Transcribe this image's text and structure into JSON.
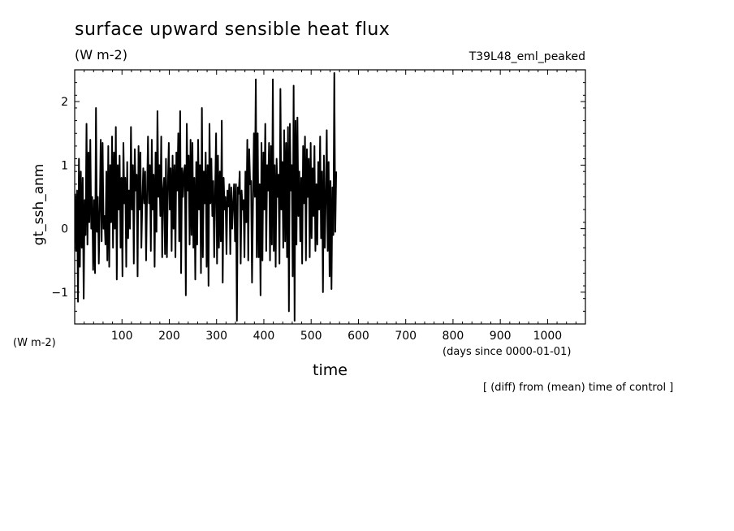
{
  "header": {
    "title": "surface upward sensible heat flux",
    "units": "(W m-2)",
    "run_name": "T39L48_eml_peaked",
    "units_left": "(W m-2)",
    "x_unit_label": "(days since 0000-01-01)",
    "note": "[ (diff) from (mean) time of control ]"
  },
  "chart_data": {
    "type": "line",
    "title": "surface upward sensible heat flux",
    "subtitle": "(W m-2)",
    "xlabel": "time",
    "ylabel": "gt_ssh_anm",
    "xlim": [
      0,
      1080
    ],
    "ylim": [
      -1.5,
      2.5
    ],
    "x_ticks": [
      100,
      200,
      300,
      400,
      500,
      600,
      700,
      800,
      900,
      1000
    ],
    "y_ticks": [
      -1,
      0,
      1,
      2
    ],
    "x_tick_labels": [
      "100",
      "200",
      "300",
      "400",
      "500",
      "600",
      "700",
      "800",
      "900",
      "1000"
    ],
    "y_tick_labels": [
      "−1",
      "0",
      "1",
      "2"
    ],
    "grid": false,
    "series": [
      {
        "color": "#000000",
        "x_start": 1,
        "x_step": 2,
        "values": [
          0.55,
          -0.35,
          0.6,
          -1.15,
          1.1,
          -0.6,
          0.9,
          -0.3,
          0.8,
          -1.1,
          0.45,
          -0.1,
          1.65,
          -0.25,
          1.2,
          0.1,
          1.4,
          0.0,
          0.5,
          -0.65,
          0.45,
          -0.7,
          1.9,
          -0.05,
          0.5,
          -0.55,
          0.3,
          1.4,
          -0.2,
          1.35,
          0.0,
          0.2,
          -0.25,
          0.9,
          -0.5,
          1.3,
          -0.6,
          1.0,
          0.1,
          1.45,
          -0.3,
          1.2,
          0.0,
          1.6,
          -0.8,
          1.0,
          0.3,
          1.15,
          -0.3,
          0.8,
          -0.75,
          1.35,
          0.4,
          0.8,
          -0.6,
          1.05,
          -0.15,
          0.6,
          0.0,
          1.6,
          0.3,
          1.0,
          -0.55,
          1.25,
          0.6,
          0.85,
          -0.75,
          1.3,
          0.3,
          1.2,
          -0.3,
          0.4,
          0.95,
          0.4,
          0.9,
          -0.5,
          0.55,
          1.45,
          0.4,
          1.0,
          -0.35,
          1.4,
          0.3,
          0.85,
          -0.6,
          1.2,
          -0.05,
          1.85,
          0.5,
          1.0,
          0.2,
          1.45,
          -0.45,
          0.6,
          0.8,
          -0.4,
          1.1,
          -0.45,
          0.65,
          1.35,
          0.3,
          0.95,
          -0.35,
          1.15,
          0.0,
          1.0,
          -0.45,
          1.2,
          0.6,
          1.5,
          -0.2,
          1.85,
          -0.7,
          0.95,
          0.5,
          0.9,
          1.0,
          -1.05,
          1.65,
          0.6,
          1.15,
          -0.25,
          1.4,
          -0.1,
          1.35,
          -0.3,
          0.8,
          -0.8,
          1.05,
          -0.25,
          1.4,
          0.3,
          1.0,
          -0.7,
          1.9,
          -0.45,
          0.9,
          0.4,
          1.2,
          -0.6,
          1.0,
          -0.9,
          1.65,
          0.4,
          1.1,
          0.2,
          0.75,
          -0.45,
          0.6,
          1.5,
          -0.55,
          1.15,
          -0.3,
          0.9,
          -0.2,
          1.7,
          -0.85,
          0.8,
          0.3,
          0.5,
          -0.4,
          0.6,
          0.35,
          0.7,
          -0.4,
          0.65,
          0.0,
          0.4,
          0.7,
          -0.2,
          0.7,
          -1.45,
          0.65,
          0.55,
          0.9,
          -0.55,
          0.6,
          0.3,
          0.45,
          -0.45,
          0.9,
          0.1,
          1.4,
          -0.5,
          1.25,
          0.7,
          0.75,
          -0.85,
          0.4,
          1.5,
          0.5,
          2.35,
          -0.45,
          1.5,
          -0.45,
          0.7,
          -1.05,
          1.35,
          -0.5,
          1.2,
          0.3,
          1.65,
          -0.35,
          1.0,
          0.6,
          1.35,
          -0.5,
          1.3,
          -0.25,
          2.35,
          -0.35,
          1.0,
          -0.6,
          1.1,
          0.5,
          0.85,
          -0.55,
          2.2,
          0.3,
          1.05,
          -0.3,
          1.55,
          -0.2,
          1.35,
          -0.45,
          1.6,
          -1.3,
          1.65,
          0.6,
          1.0,
          -0.75,
          2.25,
          -1.45,
          1.7,
          -0.25,
          1.75,
          0.2,
          0.9,
          -0.2,
          0.8,
          -0.55,
          1.3,
          0.4,
          1.45,
          -0.5,
          1.25,
          0.5,
          1.1,
          -0.45,
          1.35,
          -0.15,
          0.95,
          0.2,
          1.3,
          -0.35,
          0.7,
          -0.25,
          1.05,
          0.3,
          1.45,
          -0.15,
          0.9,
          -1.0,
          1.15,
          -0.3,
          0.5,
          1.55,
          -0.35,
          1.05,
          -0.75,
          0.75,
          -0.95,
          0.65,
          -0.1,
          2.45,
          -0.05,
          0.9
        ]
      }
    ]
  }
}
